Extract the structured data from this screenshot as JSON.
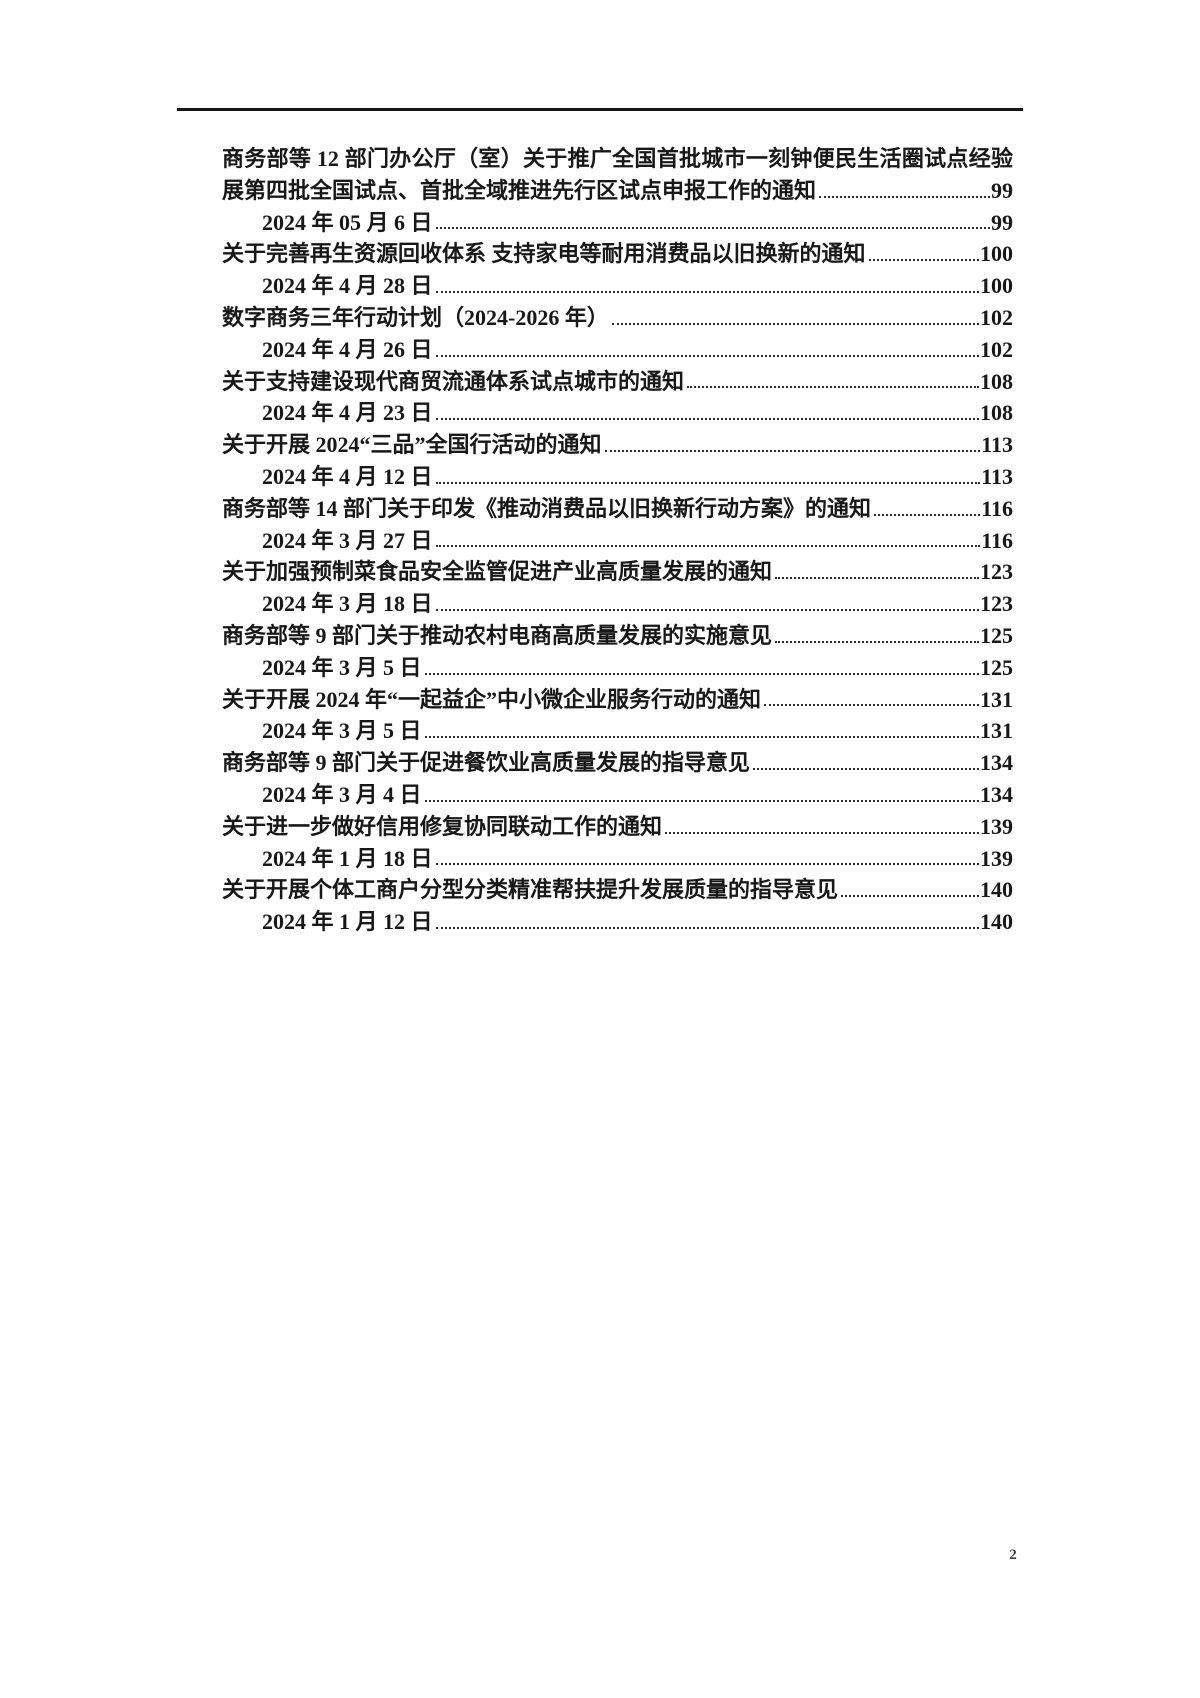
{
  "page": {
    "footer_page_number": "2"
  },
  "toc": {
    "entries": [
      {
        "title_lines": [
          "商务部等 12 部门办公厅（室）关于推广全国首批城市一刻钟便民生活圈试点经验及开",
          "展第四批全国试点、首批全域推进先行区试点申报工作的通知"
        ],
        "page": "99",
        "date": "2024 年 05 月 6 日",
        "date_page": "99"
      },
      {
        "title_lines": [
          "关于完善再生资源回收体系 支持家电等耐用消费品以旧换新的通知"
        ],
        "page": "100",
        "date": "2024 年 4 月 28 日",
        "date_page": "100"
      },
      {
        "title_lines": [
          "数字商务三年行动计划（2024-2026 年）"
        ],
        "page": "102",
        "date": "2024 年 4 月 26 日",
        "date_page": "102"
      },
      {
        "title_lines": [
          "关于支持建设现代商贸流通体系试点城市的通知"
        ],
        "page": "108",
        "date": "2024 年 4 月 23 日",
        "date_page": "108"
      },
      {
        "title_lines": [
          "关于开展 2024“三品”全国行活动的通知"
        ],
        "page": "113",
        "date": "2024 年 4 月 12 日",
        "date_page": "113"
      },
      {
        "title_lines": [
          "商务部等 14 部门关于印发《推动消费品以旧换新行动方案》的通知"
        ],
        "page": "116",
        "date": "2024 年 3 月 27 日",
        "date_page": "116"
      },
      {
        "title_lines": [
          "关于加强预制菜食品安全监管促进产业高质量发展的通知"
        ],
        "page": "123",
        "date": "2024 年 3 月 18 日",
        "date_page": "123"
      },
      {
        "title_lines": [
          "商务部等 9 部门关于推动农村电商高质量发展的实施意见"
        ],
        "page": "125",
        "date": "2024 年 3 月 5 日",
        "date_page": "125"
      },
      {
        "title_lines": [
          "关于开展 2024 年“一起益企”中小微企业服务行动的通知"
        ],
        "page": "131",
        "date": "2024 年 3 月 5 日",
        "date_page": "131"
      },
      {
        "title_lines": [
          "商务部等 9 部门关于促进餐饮业高质量发展的指导意见"
        ],
        "page": "134",
        "date": "2024 年 3 月 4 日",
        "date_page": "134"
      },
      {
        "title_lines": [
          "关于进一步做好信用修复协同联动工作的通知"
        ],
        "page": "139",
        "date": "2024 年 1 月 18 日",
        "date_page": "139"
      },
      {
        "title_lines": [
          "关于开展个体工商户分型分类精准帮扶提升发展质量的指导意见"
        ],
        "page": "140",
        "date": "2024 年 1 月 12 日",
        "date_page": "140"
      }
    ]
  }
}
